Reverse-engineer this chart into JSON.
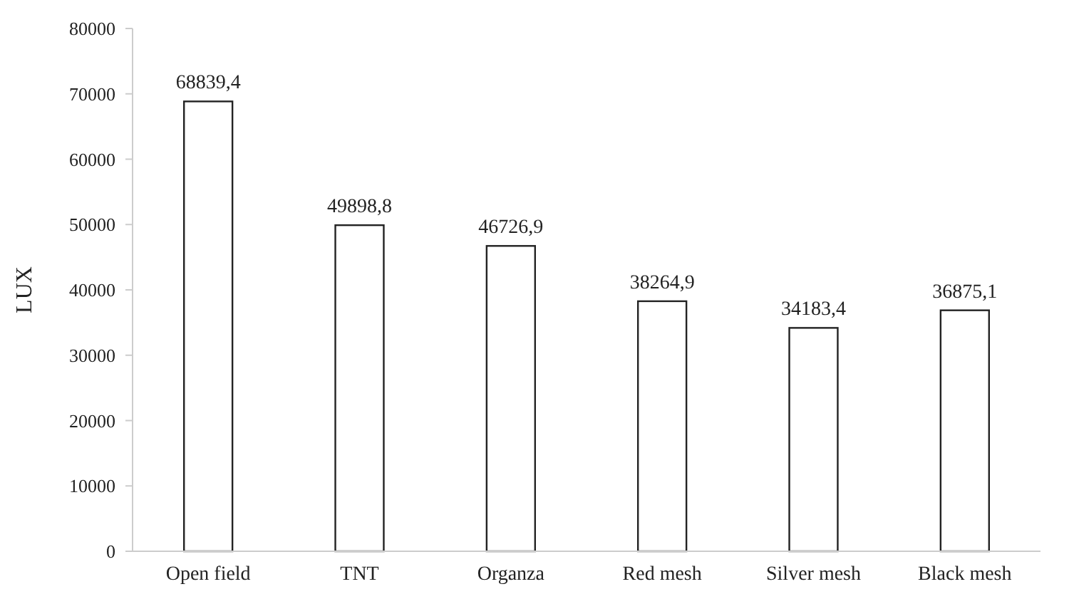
{
  "chart_data": {
    "type": "bar",
    "ylabel": "LUX",
    "categories": [
      "Open field",
      "TNT",
      "Organza",
      "Red mesh",
      "Silver mesh",
      "Black mesh"
    ],
    "values": [
      68839.4,
      49898.8,
      46726.9,
      38264.9,
      34183.4,
      36875.1
    ],
    "value_labels": [
      "68839,4",
      "49898,8",
      "46726,9",
      "38264,9",
      "34183,4",
      "36875,1"
    ],
    "color": "#ffffff",
    "ylim": [
      0,
      80000
    ],
    "yticks": [
      0,
      10000,
      20000,
      30000,
      40000,
      50000,
      60000,
      70000,
      80000
    ],
    "grid": false
  }
}
